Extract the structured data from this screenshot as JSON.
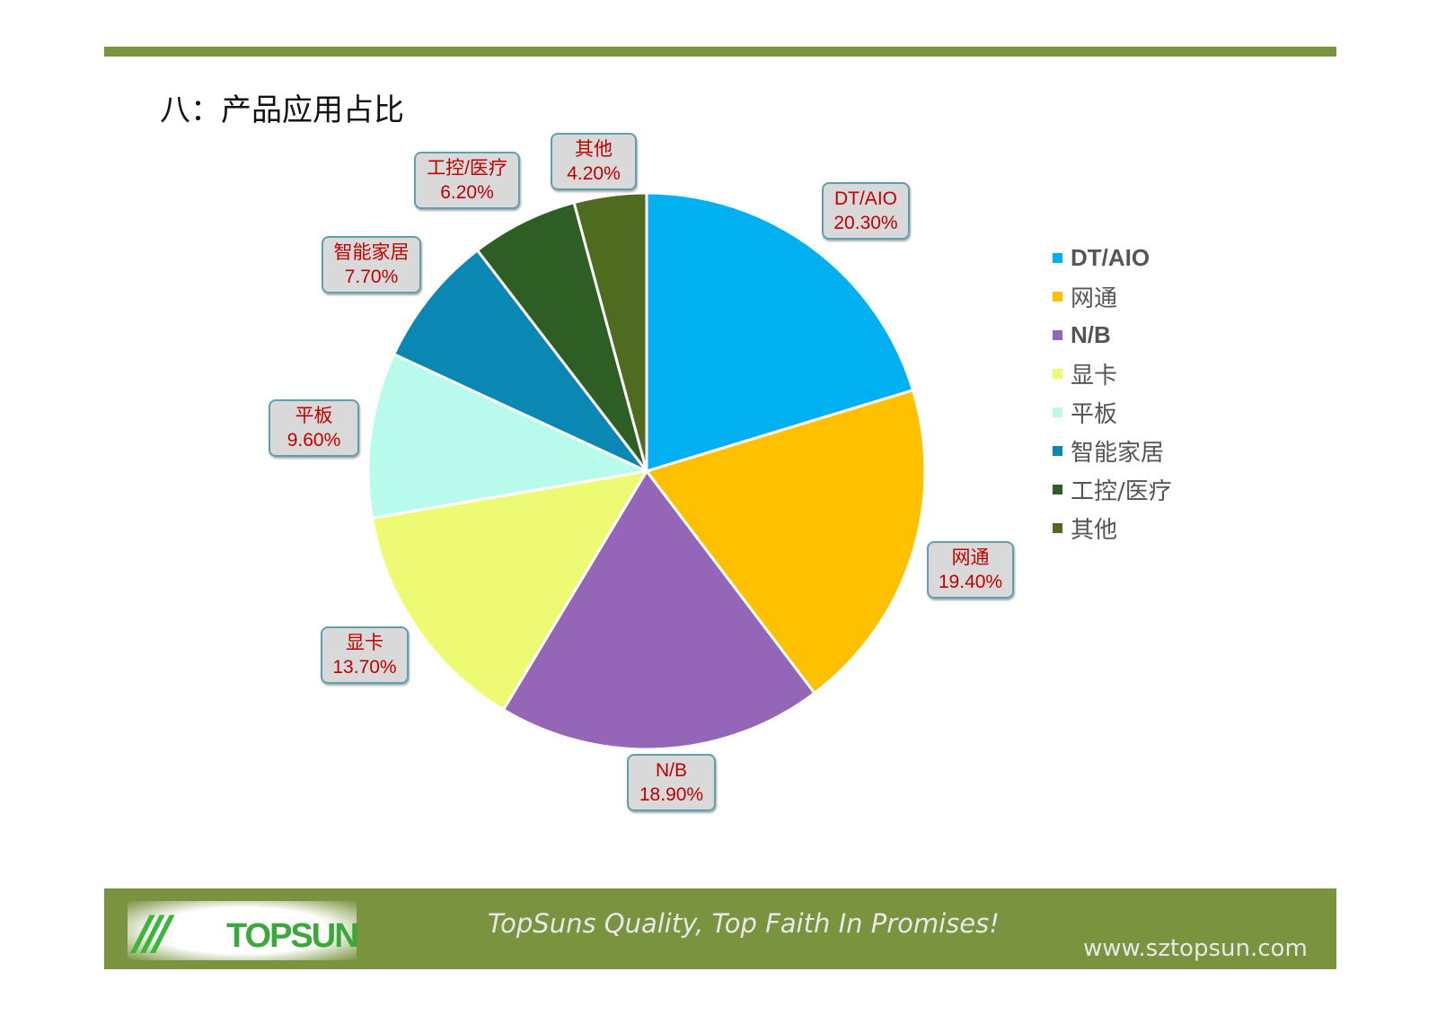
{
  "title": "八：产品应用占比",
  "chart_data": {
    "type": "pie",
    "start": "top, clockwise",
    "legend_position": "right",
    "slices": [
      {
        "name": "DT/AIO",
        "value": 20.3,
        "label": "20.30%",
        "color": "#00b0f0",
        "bold": true
      },
      {
        "name": "网通",
        "value": 19.4,
        "label": "19.40%",
        "color": "#ffc000",
        "bold": false
      },
      {
        "name": "N/B",
        "value": 18.9,
        "label": "18.90%",
        "color": "#9566b8",
        "bold": true
      },
      {
        "name": "显卡",
        "value": 13.7,
        "label": "13.70%",
        "color": "#eefa73",
        "bold": false
      },
      {
        "name": "平板",
        "value": 9.6,
        "label": "9.60%",
        "color": "#b8fbec",
        "bold": false
      },
      {
        "name": "智能家居",
        "value": 7.7,
        "label": "7.70%",
        "color": "#0a87b3",
        "bold": false
      },
      {
        "name": "工控/医疗",
        "value": 6.2,
        "label": "6.20%",
        "color": "#2e5e23",
        "bold": false
      },
      {
        "name": "其他",
        "value": 4.2,
        "label": "4.20%",
        "color": "#4f6b20",
        "bold": false
      }
    ]
  },
  "footer": {
    "logo_text": "TOPSUN",
    "slogan": "TopSuns Quality, Top Faith In Promises!",
    "url": "www.sztopsun.com"
  },
  "colors": {
    "accent": "#7a933e"
  }
}
